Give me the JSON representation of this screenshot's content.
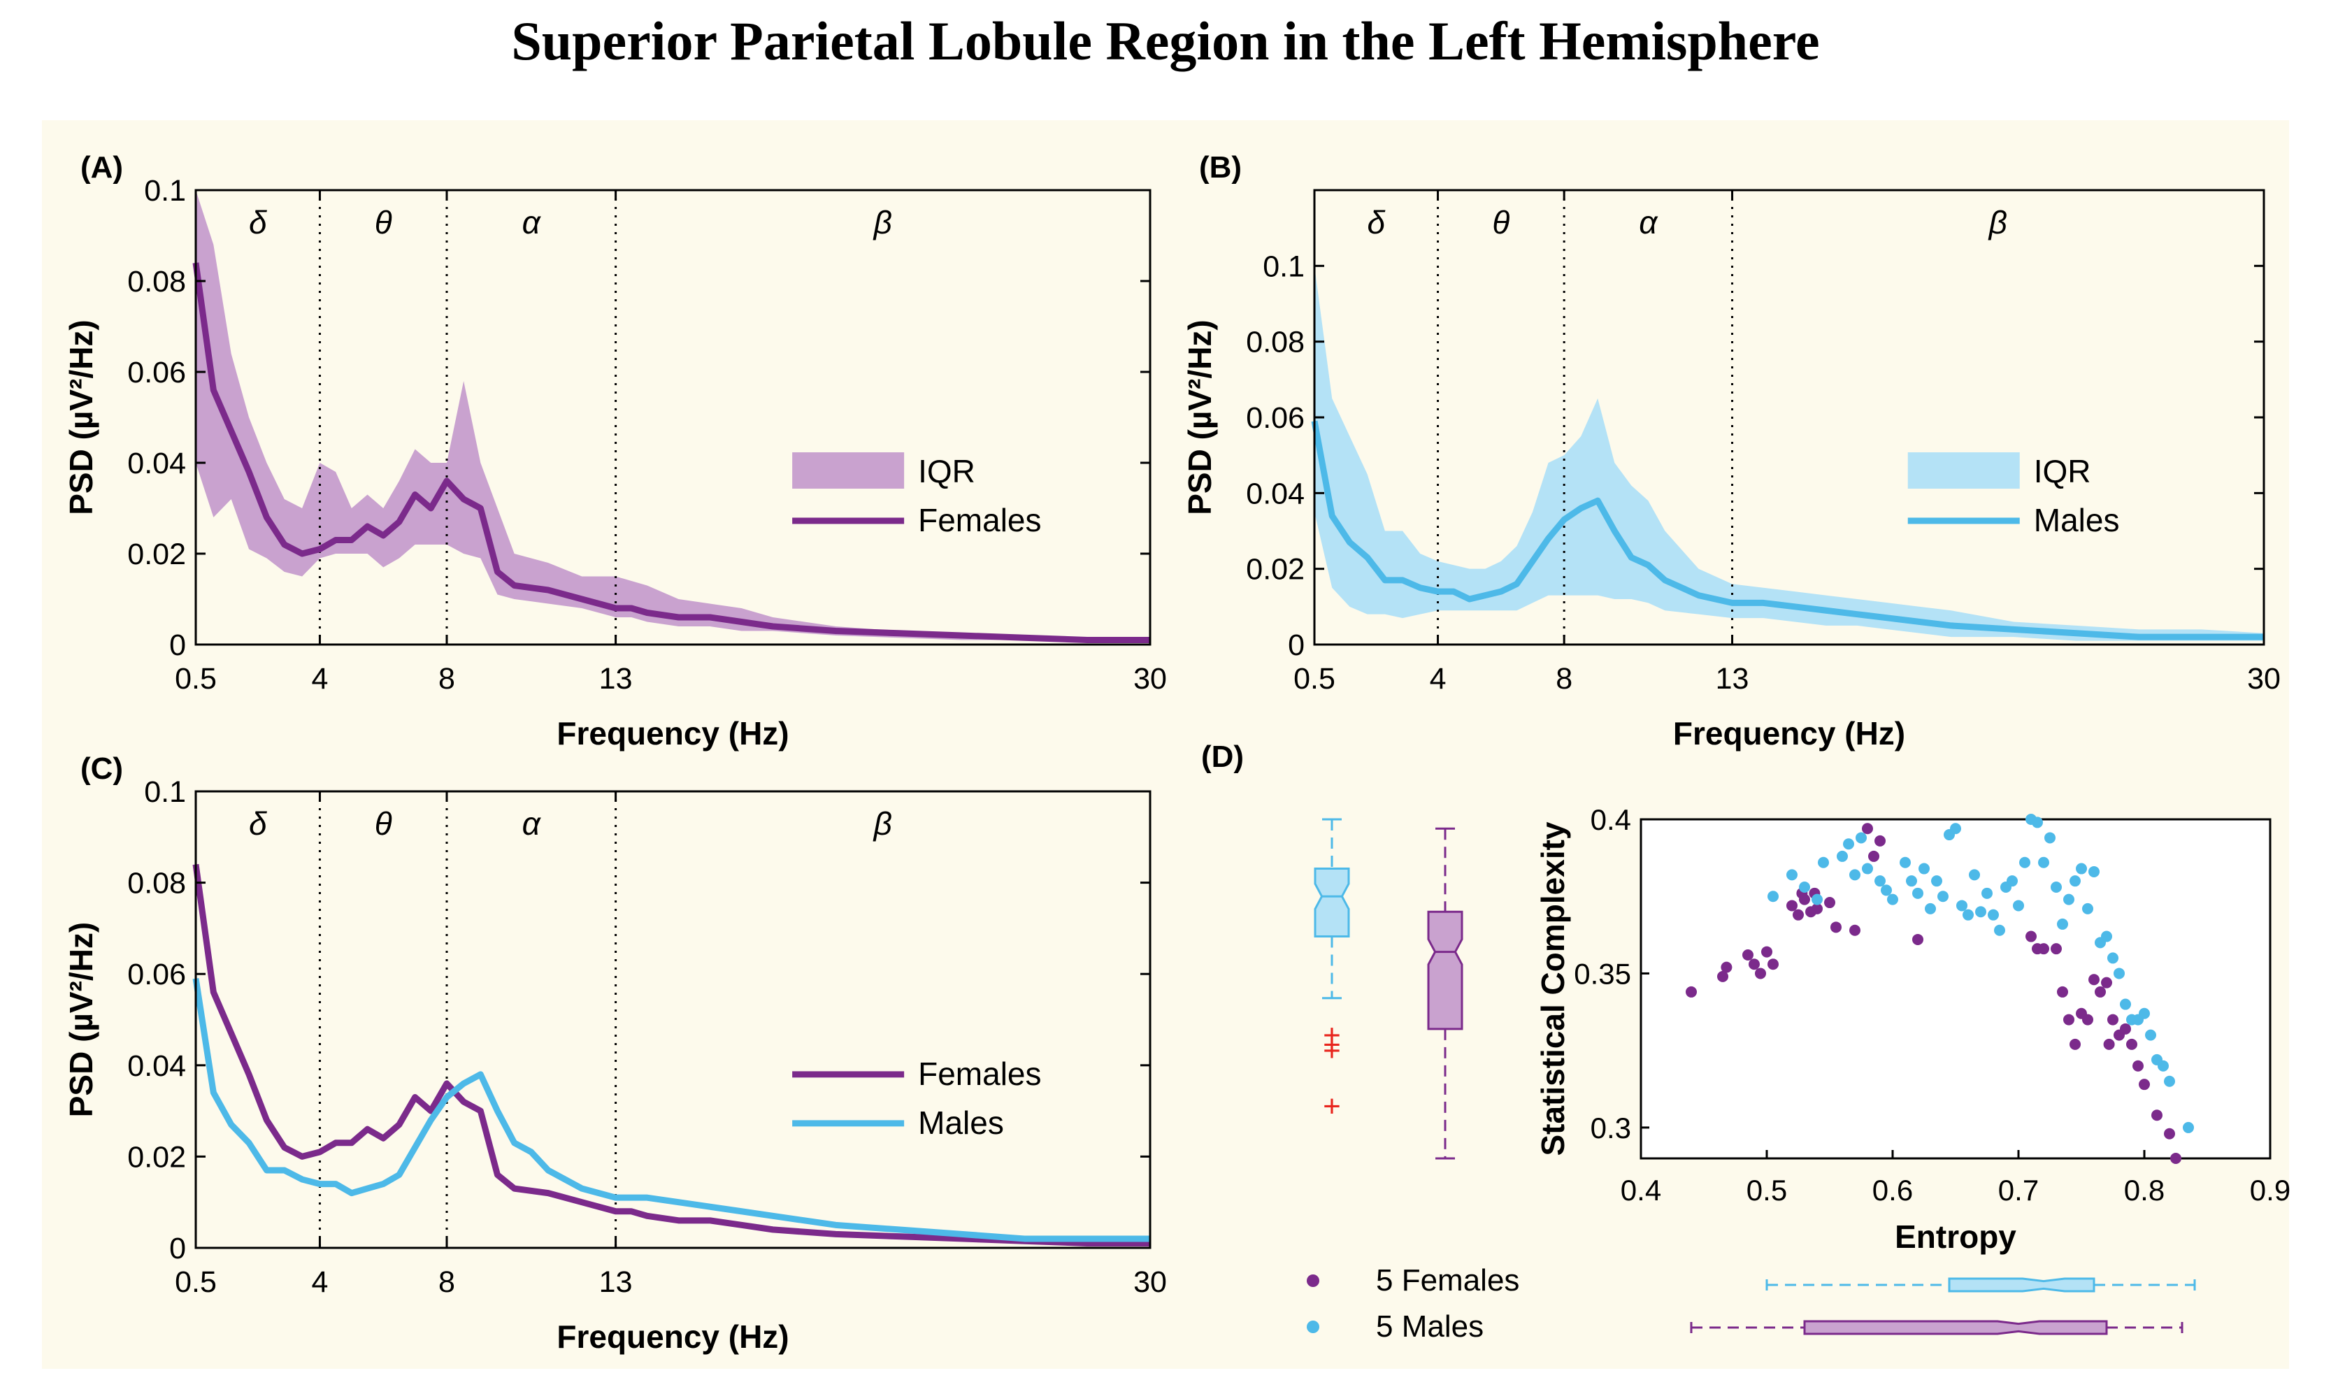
{
  "title": "Superior Parietal Lobule Region in the Left Hemisphere",
  "colors": {
    "female": "#7b2a8b",
    "female_band": "#c9a2cf",
    "male": "#4db9e8",
    "male_band": "#b4e2f6",
    "panel_bg": "#fdfaec",
    "outlier": "#e8251d"
  },
  "chart_data": [
    {
      "id": "A",
      "panel_label": "(A)",
      "type": "line",
      "xlabel": "Frequency (Hz)",
      "ylabel": "PSD (µV²/Hz)",
      "xlim": [
        0.5,
        30
      ],
      "ylim": [
        0,
        0.1
      ],
      "xticks": [
        0.5,
        4,
        8,
        13,
        30
      ],
      "yticks": [
        0,
        0.02,
        0.04,
        0.06,
        0.08,
        0.1
      ],
      "bands": [
        {
          "label": "δ",
          "center": 2.25
        },
        {
          "label": "θ",
          "center": 6
        },
        {
          "label": "α",
          "center": 10.5
        },
        {
          "label": "β",
          "center": 21.5
        }
      ],
      "band_edges": [
        4,
        8,
        13
      ],
      "x": [
        0.5,
        1,
        1.5,
        2,
        2.5,
        3,
        3.5,
        4,
        4.5,
        5,
        5.5,
        6,
        6.5,
        7,
        7.5,
        8,
        8.5,
        9,
        9.5,
        10,
        11,
        12,
        13,
        13.5,
        14,
        15,
        16,
        17,
        18,
        20,
        22,
        24,
        26,
        28,
        30
      ],
      "legend": [
        "IQR",
        "Females"
      ],
      "series": [
        {
          "name": "Females",
          "color_key": "female",
          "values": [
            0.084,
            0.056,
            0.047,
            0.038,
            0.028,
            0.022,
            0.02,
            0.021,
            0.023,
            0.023,
            0.026,
            0.024,
            0.027,
            0.033,
            0.03,
            0.036,
            0.032,
            0.03,
            0.016,
            0.013,
            0.012,
            0.01,
            0.008,
            0.008,
            0.007,
            0.006,
            0.006,
            0.005,
            0.004,
            0.003,
            0.0025,
            0.002,
            0.0015,
            0.001,
            0.001
          ],
          "iqr_low": [
            0.04,
            0.028,
            0.032,
            0.021,
            0.019,
            0.016,
            0.015,
            0.019,
            0.02,
            0.02,
            0.02,
            0.017,
            0.019,
            0.022,
            0.022,
            0.022,
            0.02,
            0.019,
            0.011,
            0.01,
            0.009,
            0.008,
            0.006,
            0.006,
            0.005,
            0.004,
            0.004,
            0.003,
            0.003,
            0.002,
            0.0015,
            0.001,
            0.001,
            0.0005,
            0.0005
          ],
          "iqr_high": [
            0.1,
            0.088,
            0.064,
            0.05,
            0.04,
            0.032,
            0.03,
            0.04,
            0.038,
            0.03,
            0.033,
            0.03,
            0.036,
            0.043,
            0.04,
            0.04,
            0.058,
            0.04,
            0.03,
            0.02,
            0.018,
            0.015,
            0.015,
            0.014,
            0.013,
            0.01,
            0.009,
            0.008,
            0.006,
            0.004,
            0.003,
            0.0025,
            0.002,
            0.0015,
            0.0015
          ]
        }
      ]
    },
    {
      "id": "B",
      "panel_label": "(B)",
      "type": "line",
      "xlabel": "Frequency (Hz)",
      "ylabel": "PSD (µV²/Hz)",
      "xlim": [
        0.5,
        30
      ],
      "ylim": [
        0,
        0.12
      ],
      "xticks": [
        0.5,
        4,
        8,
        13,
        30
      ],
      "yticks": [
        0,
        0.02,
        0.04,
        0.06,
        0.08,
        0.1
      ],
      "bands": [
        {
          "label": "δ",
          "center": 2.25
        },
        {
          "label": "θ",
          "center": 6
        },
        {
          "label": "α",
          "center": 10.5
        },
        {
          "label": "β",
          "center": 21.5
        }
      ],
      "band_edges": [
        4,
        8,
        13
      ],
      "x": [
        0.5,
        1,
        1.5,
        2,
        2.5,
        3,
        3.5,
        4,
        4.5,
        5,
        5.5,
        6,
        6.5,
        7,
        7.5,
        8,
        8.5,
        9,
        9.5,
        10,
        10.5,
        11,
        12,
        13,
        14,
        15,
        16,
        17,
        18,
        19,
        20,
        22,
        24,
        26,
        28,
        30
      ],
      "legend": [
        "IQR",
        "Males"
      ],
      "series": [
        {
          "name": "Males",
          "color_key": "male",
          "values": [
            0.059,
            0.034,
            0.027,
            0.023,
            0.017,
            0.017,
            0.015,
            0.014,
            0.014,
            0.012,
            0.013,
            0.014,
            0.016,
            0.022,
            0.028,
            0.033,
            0.036,
            0.038,
            0.03,
            0.023,
            0.021,
            0.017,
            0.013,
            0.011,
            0.011,
            0.01,
            0.009,
            0.008,
            0.007,
            0.006,
            0.005,
            0.004,
            0.003,
            0.002,
            0.002,
            0.002
          ],
          "iqr_low": [
            0.035,
            0.015,
            0.01,
            0.008,
            0.008,
            0.007,
            0.008,
            0.009,
            0.009,
            0.009,
            0.009,
            0.009,
            0.009,
            0.011,
            0.013,
            0.013,
            0.013,
            0.013,
            0.012,
            0.012,
            0.011,
            0.009,
            0.008,
            0.007,
            0.007,
            0.006,
            0.005,
            0.005,
            0.004,
            0.003,
            0.002,
            0.002,
            0.001,
            0.001,
            0.001,
            0.001
          ],
          "iqr_high": [
            0.1,
            0.065,
            0.055,
            0.045,
            0.03,
            0.03,
            0.024,
            0.022,
            0.021,
            0.02,
            0.02,
            0.022,
            0.026,
            0.035,
            0.048,
            0.05,
            0.055,
            0.065,
            0.048,
            0.042,
            0.038,
            0.03,
            0.02,
            0.016,
            0.015,
            0.014,
            0.013,
            0.012,
            0.011,
            0.01,
            0.009,
            0.006,
            0.005,
            0.004,
            0.004,
            0.003
          ]
        }
      ]
    },
    {
      "id": "C",
      "panel_label": "(C)",
      "type": "line",
      "xlabel": "Frequency (Hz)",
      "ylabel": "PSD (µV²/Hz)",
      "xlim": [
        0.5,
        30
      ],
      "ylim": [
        0,
        0.1
      ],
      "xticks": [
        0.5,
        4,
        8,
        13,
        30
      ],
      "yticks": [
        0,
        0.02,
        0.04,
        0.06,
        0.08,
        0.1
      ],
      "bands": [
        {
          "label": "δ",
          "center": 2.25
        },
        {
          "label": "θ",
          "center": 6
        },
        {
          "label": "α",
          "center": 10.5
        },
        {
          "label": "β",
          "center": 21.5
        }
      ],
      "band_edges": [
        4,
        8,
        13
      ],
      "legend": [
        "Females",
        "Males"
      ],
      "series": [
        {
          "name": "Females",
          "color_key": "female",
          "x": [
            0.5,
            1,
            1.5,
            2,
            2.5,
            3,
            3.5,
            4,
            4.5,
            5,
            5.5,
            6,
            6.5,
            7,
            7.5,
            8,
            8.5,
            9,
            9.5,
            10,
            11,
            12,
            13,
            13.5,
            14,
            15,
            16,
            17,
            18,
            20,
            22,
            24,
            26,
            28,
            30
          ],
          "values": [
            0.084,
            0.056,
            0.047,
            0.038,
            0.028,
            0.022,
            0.02,
            0.021,
            0.023,
            0.023,
            0.026,
            0.024,
            0.027,
            0.033,
            0.03,
            0.036,
            0.032,
            0.03,
            0.016,
            0.013,
            0.012,
            0.01,
            0.008,
            0.008,
            0.007,
            0.006,
            0.006,
            0.005,
            0.004,
            0.003,
            0.0025,
            0.002,
            0.0015,
            0.001,
            0.001
          ]
        },
        {
          "name": "Males",
          "color_key": "male",
          "x": [
            0.5,
            1,
            1.5,
            2,
            2.5,
            3,
            3.5,
            4,
            4.5,
            5,
            5.5,
            6,
            6.5,
            7,
            7.5,
            8,
            8.5,
            9,
            9.5,
            10,
            10.5,
            11,
            12,
            13,
            14,
            15,
            16,
            17,
            18,
            19,
            20,
            22,
            24,
            26,
            28,
            30
          ],
          "values": [
            0.059,
            0.034,
            0.027,
            0.023,
            0.017,
            0.017,
            0.015,
            0.014,
            0.014,
            0.012,
            0.013,
            0.014,
            0.016,
            0.022,
            0.028,
            0.033,
            0.036,
            0.038,
            0.03,
            0.023,
            0.021,
            0.017,
            0.013,
            0.011,
            0.011,
            0.01,
            0.009,
            0.008,
            0.007,
            0.006,
            0.005,
            0.004,
            0.003,
            0.002,
            0.002,
            0.002
          ]
        }
      ]
    },
    {
      "id": "D",
      "panel_label": "(D)",
      "type": "scatter",
      "xlabel": "Entropy",
      "ylabel": "Statistical Complexity",
      "xlim": [
        0.4,
        0.9
      ],
      "ylim": [
        0.29,
        0.4
      ],
      "xticks": [
        0.4,
        0.5,
        0.6,
        0.7,
        0.8,
        0.9
      ],
      "yticks": [
        0.3,
        0.35,
        0.4
      ],
      "legend": [
        "5 Females",
        "5 Males"
      ],
      "series": [
        {
          "name": "5 Females",
          "color_key": "female",
          "points": [
            [
              0.44,
              0.344
            ],
            [
              0.465,
              0.349
            ],
            [
              0.468,
              0.352
            ],
            [
              0.485,
              0.356
            ],
            [
              0.49,
              0.353
            ],
            [
              0.495,
              0.35
            ],
            [
              0.5,
              0.357
            ],
            [
              0.505,
              0.353
            ],
            [
              0.52,
              0.372
            ],
            [
              0.525,
              0.369
            ],
            [
              0.528,
              0.376
            ],
            [
              0.53,
              0.374
            ],
            [
              0.535,
              0.37
            ],
            [
              0.538,
              0.376
            ],
            [
              0.54,
              0.371
            ],
            [
              0.55,
              0.373
            ],
            [
              0.555,
              0.365
            ],
            [
              0.57,
              0.364
            ],
            [
              0.58,
              0.397
            ],
            [
              0.585,
              0.388
            ],
            [
              0.59,
              0.393
            ],
            [
              0.62,
              0.361
            ],
            [
              0.71,
              0.362
            ],
            [
              0.715,
              0.358
            ],
            [
              0.72,
              0.358
            ],
            [
              0.73,
              0.358
            ],
            [
              0.735,
              0.344
            ],
            [
              0.74,
              0.335
            ],
            [
              0.745,
              0.327
            ],
            [
              0.75,
              0.337
            ],
            [
              0.755,
              0.335
            ],
            [
              0.76,
              0.348
            ],
            [
              0.765,
              0.344
            ],
            [
              0.77,
              0.347
            ],
            [
              0.772,
              0.327
            ],
            [
              0.775,
              0.335
            ],
            [
              0.78,
              0.33
            ],
            [
              0.785,
              0.332
            ],
            [
              0.79,
              0.327
            ],
            [
              0.795,
              0.32
            ],
            [
              0.8,
              0.314
            ],
            [
              0.81,
              0.304
            ],
            [
              0.82,
              0.298
            ],
            [
              0.825,
              0.29
            ]
          ]
        },
        {
          "name": "5 Males",
          "color_key": "male",
          "points": [
            [
              0.505,
              0.375
            ],
            [
              0.52,
              0.382
            ],
            [
              0.53,
              0.378
            ],
            [
              0.54,
              0.374
            ],
            [
              0.545,
              0.386
            ],
            [
              0.56,
              0.388
            ],
            [
              0.565,
              0.392
            ],
            [
              0.57,
              0.382
            ],
            [
              0.575,
              0.394
            ],
            [
              0.58,
              0.384
            ],
            [
              0.59,
              0.38
            ],
            [
              0.595,
              0.377
            ],
            [
              0.6,
              0.374
            ],
            [
              0.61,
              0.386
            ],
            [
              0.615,
              0.38
            ],
            [
              0.62,
              0.376
            ],
            [
              0.625,
              0.384
            ],
            [
              0.63,
              0.371
            ],
            [
              0.635,
              0.38
            ],
            [
              0.64,
              0.375
            ],
            [
              0.645,
              0.395
            ],
            [
              0.65,
              0.397
            ],
            [
              0.655,
              0.372
            ],
            [
              0.66,
              0.369
            ],
            [
              0.665,
              0.382
            ],
            [
              0.67,
              0.37
            ],
            [
              0.675,
              0.376
            ],
            [
              0.68,
              0.369
            ],
            [
              0.685,
              0.364
            ],
            [
              0.69,
              0.378
            ],
            [
              0.695,
              0.38
            ],
            [
              0.7,
              0.372
            ],
            [
              0.705,
              0.386
            ],
            [
              0.71,
              0.4
            ],
            [
              0.715,
              0.399
            ],
            [
              0.72,
              0.386
            ],
            [
              0.725,
              0.394
            ],
            [
              0.73,
              0.378
            ],
            [
              0.735,
              0.366
            ],
            [
              0.74,
              0.374
            ],
            [
              0.745,
              0.38
            ],
            [
              0.75,
              0.384
            ],
            [
              0.755,
              0.371
            ],
            [
              0.76,
              0.383
            ],
            [
              0.765,
              0.36
            ],
            [
              0.77,
              0.362
            ],
            [
              0.775,
              0.355
            ],
            [
              0.78,
              0.35
            ],
            [
              0.785,
              0.34
            ],
            [
              0.79,
              0.335
            ],
            [
              0.795,
              0.335
            ],
            [
              0.8,
              0.337
            ],
            [
              0.805,
              0.33
            ],
            [
              0.81,
              0.322
            ],
            [
              0.815,
              0.32
            ],
            [
              0.82,
              0.315
            ],
            [
              0.835,
              0.3
            ]
          ]
        }
      ],
      "boxplots": {
        "males_y": {
          "min": 0.342,
          "q1": 0.362,
          "median": 0.375,
          "q3": 0.384,
          "max": 0.4,
          "outliers": [
            0.33,
            0.327,
            0.325,
            0.307
          ]
        },
        "females_y": {
          "min": 0.29,
          "q1": 0.332,
          "median": 0.357,
          "q3": 0.37,
          "max": 0.397
        },
        "males_x": {
          "min": 0.5,
          "q1": 0.645,
          "median": 0.72,
          "q3": 0.76,
          "max": 0.84
        },
        "females_x": {
          "min": 0.44,
          "q1": 0.53,
          "median": 0.7,
          "q3": 0.77,
          "max": 0.83
        }
      }
    }
  ]
}
